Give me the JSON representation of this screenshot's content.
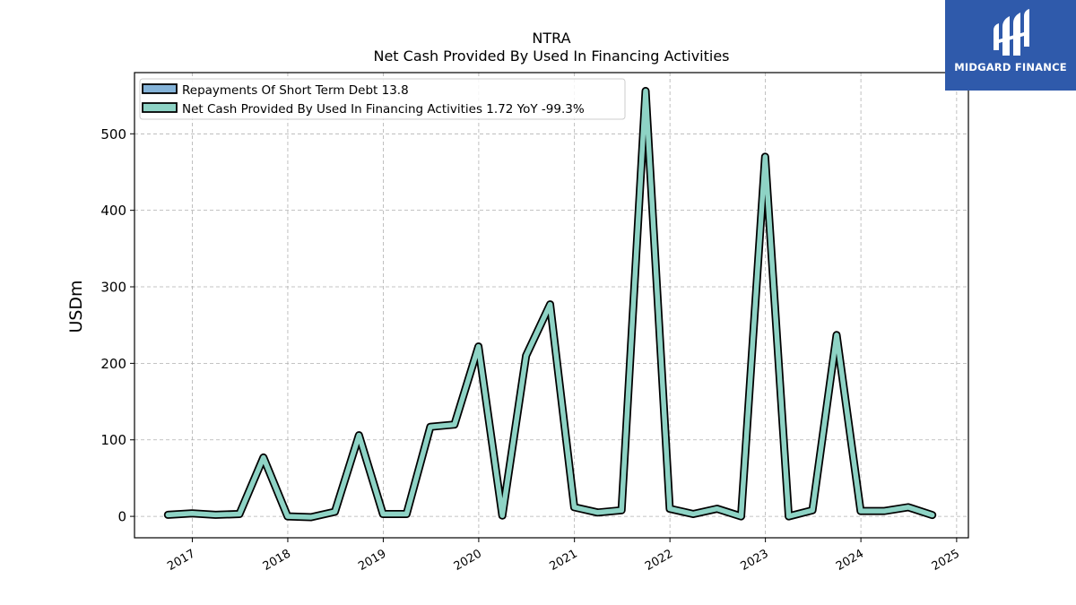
{
  "brand": {
    "name": "MIDGARD FINANCE",
    "logo_icon": "midgard-mh-logo-icon",
    "color": "#2f5aab"
  },
  "chart_data": {
    "type": "line",
    "title": "NTRA",
    "subtitle": "Net Cash Provided By Used In Financing Activities",
    "ylabel": "USDm",
    "xlabel": "",
    "x_ticks": [
      "2017",
      "2018",
      "2019",
      "2020",
      "2021",
      "2022",
      "2023",
      "2024",
      "2025"
    ],
    "y_ticks": [
      0,
      100,
      200,
      300,
      400,
      500
    ],
    "xlim": [
      "2016-05-25",
      "2025-02-15"
    ],
    "ylim": [
      -28,
      580
    ],
    "grid": true,
    "legend_position": "upper-left",
    "series": [
      {
        "name": "Repayments Of Short Term Debt",
        "legend_label": "Repayments Of Short Term Debt  13.8",
        "color": "#84b3d8",
        "x": [],
        "values": []
      },
      {
        "name": "Net Cash Provided By Used In Financing Activities",
        "legend_label": "Net Cash Provided By Used In Financing Activities  1.72 YoY -99.3%",
        "color": "#8ed3c5",
        "x": [
          "2016-09-30",
          "2016-12-31",
          "2017-03-31",
          "2017-06-30",
          "2017-09-30",
          "2017-12-31",
          "2018-03-31",
          "2018-06-30",
          "2018-09-30",
          "2018-12-31",
          "2019-03-31",
          "2019-06-30",
          "2019-09-30",
          "2019-12-31",
          "2020-03-31",
          "2020-06-30",
          "2020-09-30",
          "2020-12-31",
          "2021-03-31",
          "2021-06-30",
          "2021-09-30",
          "2021-12-31",
          "2022-03-31",
          "2022-06-30",
          "2022-09-30",
          "2022-12-31",
          "2023-03-31",
          "2023-06-30",
          "2023-09-30",
          "2023-12-31",
          "2024-03-31",
          "2024-06-30",
          "2024-09-30"
        ],
        "values": [
          2,
          4,
          2,
          3,
          77,
          0,
          -1,
          6,
          106,
          3,
          3,
          117,
          120,
          222,
          1,
          210,
          277,
          12,
          5,
          8,
          556,
          10,
          3,
          10,
          0,
          470,
          0,
          8,
          237,
          7,
          7,
          12,
          1.72
        ]
      }
    ]
  }
}
